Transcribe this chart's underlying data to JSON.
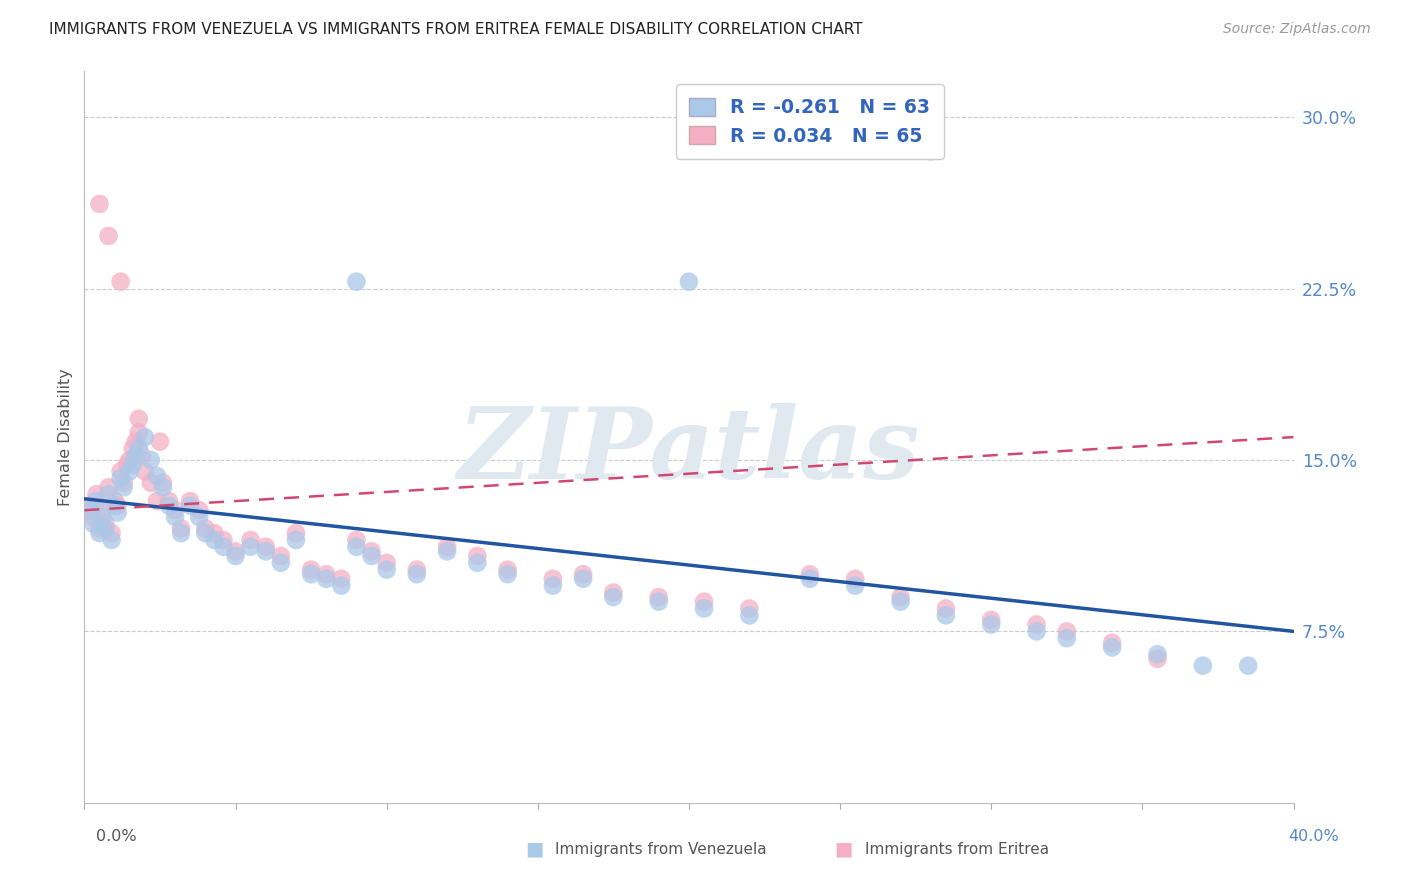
{
  "title": "IMMIGRANTS FROM VENEZUELA VS IMMIGRANTS FROM ERITREA FEMALE DISABILITY CORRELATION CHART",
  "source": "Source: ZipAtlas.com",
  "ylabel": "Female Disability",
  "xlim": [
    0.0,
    0.4
  ],
  "ylim": [
    0.0,
    0.32
  ],
  "yticks": [
    0.075,
    0.15,
    0.225,
    0.3
  ],
  "ytick_labels": [
    "7.5%",
    "15.0%",
    "22.5%",
    "30.0%"
  ],
  "xticks": [
    0.0,
    0.05,
    0.1,
    0.15,
    0.2,
    0.25,
    0.3,
    0.35,
    0.4
  ],
  "legend_R_venezuela": "-0.261",
  "legend_N_venezuela": "63",
  "legend_R_eritrea": "0.034",
  "legend_N_eritrea": "65",
  "color_venezuela": "#aac8e8",
  "color_eritrea": "#f4afc4",
  "line_color_venezuela": "#2255a0",
  "line_color_eritrea": "#d04870",
  "watermark_text": "ZIPatlas",
  "venezuela_x": [
    0.002,
    0.003,
    0.004,
    0.005,
    0.006,
    0.007,
    0.008,
    0.009,
    0.01,
    0.011,
    0.012,
    0.013,
    0.015,
    0.016,
    0.017,
    0.018,
    0.02,
    0.022,
    0.024,
    0.026,
    0.028,
    0.03,
    0.032,
    0.035,
    0.038,
    0.04,
    0.043,
    0.046,
    0.05,
    0.055,
    0.06,
    0.065,
    0.07,
    0.075,
    0.08,
    0.085,
    0.09,
    0.095,
    0.1,
    0.11,
    0.12,
    0.13,
    0.14,
    0.155,
    0.165,
    0.175,
    0.19,
    0.205,
    0.22,
    0.24,
    0.255,
    0.27,
    0.285,
    0.3,
    0.315,
    0.325,
    0.34,
    0.355,
    0.37,
    0.385,
    0.09,
    0.2,
    0.28
  ],
  "venezuela_y": [
    0.128,
    0.122,
    0.132,
    0.118,
    0.125,
    0.12,
    0.135,
    0.115,
    0.13,
    0.127,
    0.142,
    0.138,
    0.145,
    0.148,
    0.152,
    0.155,
    0.16,
    0.15,
    0.143,
    0.138,
    0.13,
    0.125,
    0.118,
    0.13,
    0.125,
    0.118,
    0.115,
    0.112,
    0.108,
    0.112,
    0.11,
    0.105,
    0.115,
    0.1,
    0.098,
    0.095,
    0.112,
    0.108,
    0.102,
    0.1,
    0.11,
    0.105,
    0.1,
    0.095,
    0.098,
    0.09,
    0.088,
    0.085,
    0.082,
    0.098,
    0.095,
    0.088,
    0.082,
    0.078,
    0.075,
    0.072,
    0.068,
    0.065,
    0.06,
    0.06,
    0.228,
    0.228,
    0.285
  ],
  "eritrea_x": [
    0.002,
    0.003,
    0.004,
    0.005,
    0.006,
    0.007,
    0.008,
    0.009,
    0.01,
    0.011,
    0.012,
    0.013,
    0.014,
    0.015,
    0.016,
    0.017,
    0.018,
    0.019,
    0.02,
    0.022,
    0.024,
    0.026,
    0.028,
    0.03,
    0.032,
    0.035,
    0.038,
    0.04,
    0.043,
    0.046,
    0.05,
    0.055,
    0.06,
    0.065,
    0.07,
    0.075,
    0.08,
    0.085,
    0.09,
    0.095,
    0.1,
    0.11,
    0.12,
    0.13,
    0.14,
    0.155,
    0.165,
    0.175,
    0.19,
    0.205,
    0.22,
    0.24,
    0.255,
    0.27,
    0.285,
    0.3,
    0.315,
    0.325,
    0.34,
    0.355,
    0.005,
    0.008,
    0.012,
    0.018,
    0.025
  ],
  "eritrea_y": [
    0.13,
    0.125,
    0.135,
    0.12,
    0.128,
    0.122,
    0.138,
    0.118,
    0.132,
    0.13,
    0.145,
    0.14,
    0.148,
    0.15,
    0.155,
    0.158,
    0.162,
    0.152,
    0.145,
    0.14,
    0.132,
    0.14,
    0.132,
    0.128,
    0.12,
    0.132,
    0.128,
    0.12,
    0.118,
    0.115,
    0.11,
    0.115,
    0.112,
    0.108,
    0.118,
    0.102,
    0.1,
    0.098,
    0.115,
    0.11,
    0.105,
    0.102,
    0.112,
    0.108,
    0.102,
    0.098,
    0.1,
    0.092,
    0.09,
    0.088,
    0.085,
    0.1,
    0.098,
    0.09,
    0.085,
    0.08,
    0.078,
    0.075,
    0.07,
    0.063,
    0.262,
    0.248,
    0.228,
    0.168,
    0.158
  ],
  "ven_line_x": [
    0.0,
    0.4
  ],
  "ven_line_y": [
    0.133,
    0.075
  ],
  "eri_line_x": [
    0.0,
    0.4
  ],
  "eri_line_y": [
    0.128,
    0.16
  ]
}
